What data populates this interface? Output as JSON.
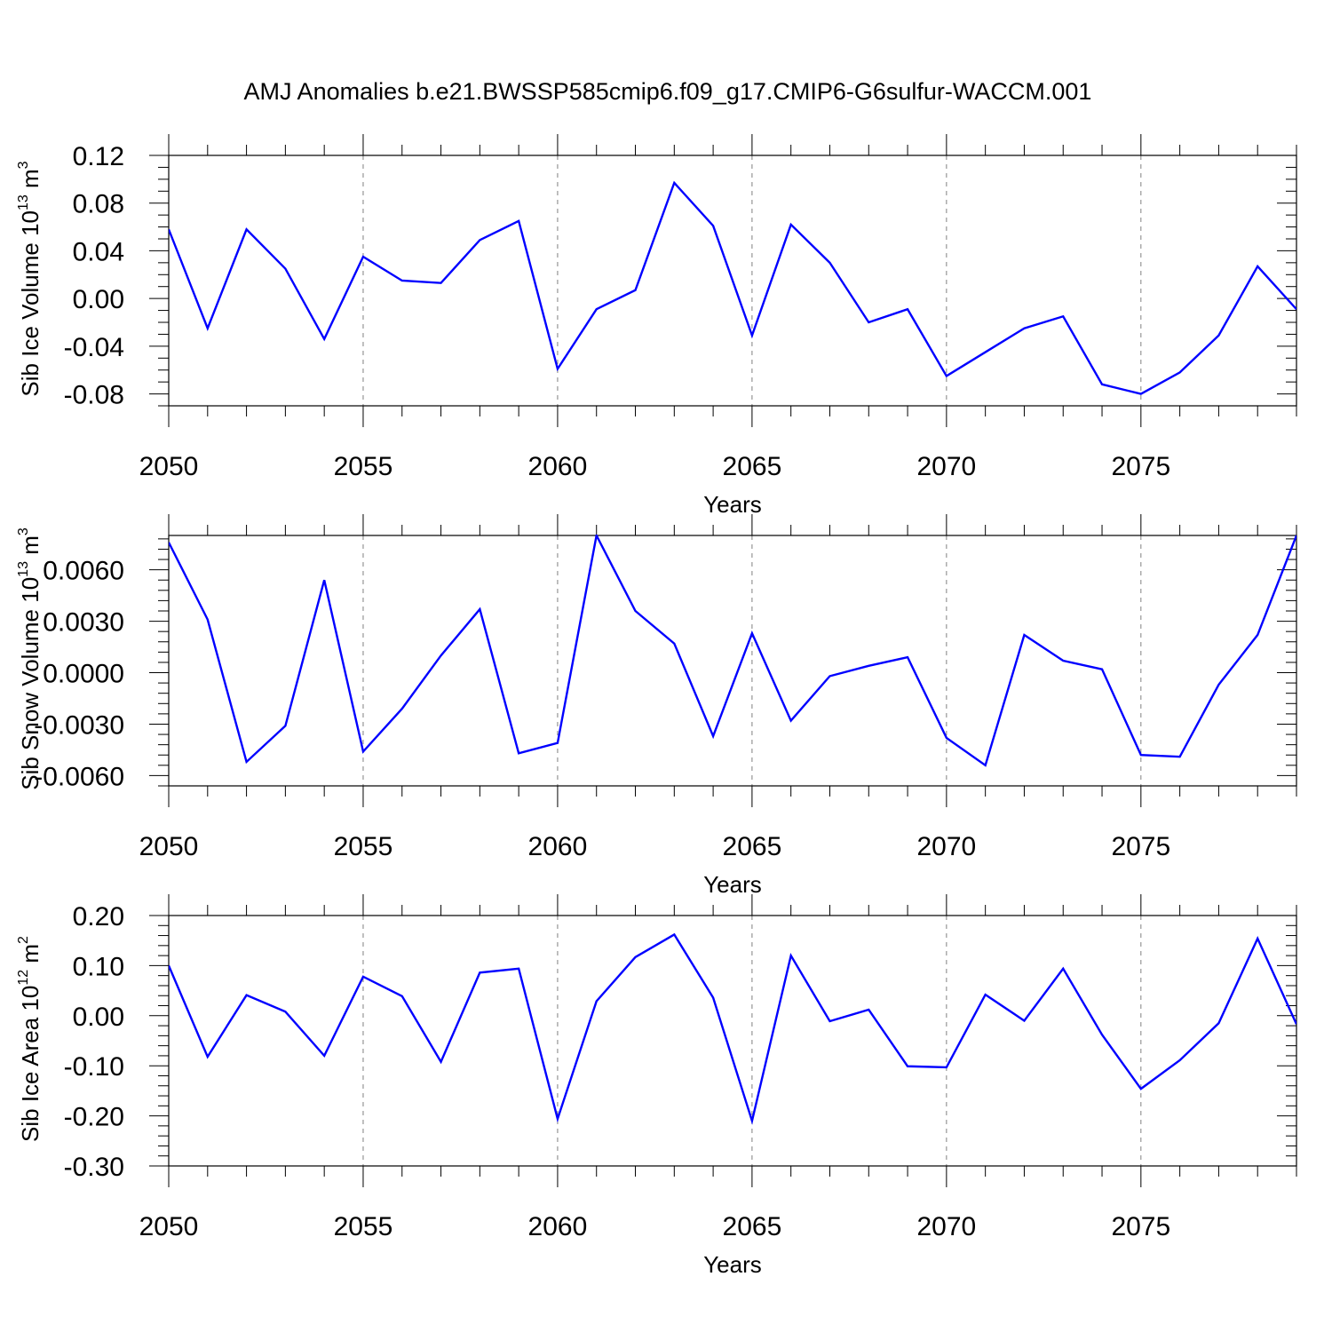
{
  "figure_title": "AMJ Anomalies b.e21.BWSSP585cmip6.f09_g17.CMIP6-G6sulfur-WACCM.001",
  "colors": {
    "series": "#0000ff",
    "axis": "#000000",
    "grid": "#808080"
  },
  "chart_data": [
    {
      "type": "line",
      "ylabel": "Sib Ice Volume 10",
      "ylabel_exp": "13",
      "ylabel_unit": " m",
      "ylabel_unit_exp": "3",
      "xlabel": "Years",
      "xlim": [
        2050,
        2079
      ],
      "ylim": [
        -0.09,
        0.12
      ],
      "xticks": [
        2050,
        2055,
        2060,
        2065,
        2070,
        2075
      ],
      "xtick_labels": [
        "2050",
        "2055",
        "2060",
        "2065",
        "2070",
        "2075"
      ],
      "yticks": [
        -0.08,
        -0.04,
        0.0,
        0.04,
        0.08,
        0.12
      ],
      "ytick_labels": [
        "-0.08",
        "-0.04",
        "0.00",
        "0.04",
        "0.08",
        "0.12"
      ],
      "yminor_step": 0.01,
      "grid": "vertical dashed at major x ticks",
      "x": [
        2050,
        2051,
        2052,
        2053,
        2054,
        2055,
        2056,
        2057,
        2058,
        2059,
        2060,
        2061,
        2062,
        2063,
        2064,
        2065,
        2066,
        2067,
        2068,
        2069,
        2070,
        2071,
        2072,
        2073,
        2074,
        2075,
        2076,
        2077,
        2078,
        2079
      ],
      "values": [
        0.058,
        -0.025,
        0.058,
        0.025,
        -0.034,
        0.035,
        0.015,
        0.013,
        0.049,
        0.065,
        -0.059,
        -0.009,
        0.007,
        0.097,
        0.061,
        -0.031,
        0.062,
        0.03,
        -0.02,
        -0.009,
        -0.065,
        -0.045,
        -0.025,
        -0.015,
        -0.072,
        -0.08,
        -0.062,
        -0.031,
        0.027,
        -0.009
      ]
    },
    {
      "type": "line",
      "ylabel": "Sib Snow Volume 10",
      "ylabel_exp": "13",
      "ylabel_unit": " m",
      "ylabel_unit_exp": "3",
      "xlabel": "Years",
      "xlim": [
        2050,
        2079
      ],
      "ylim": [
        -0.0066,
        0.008
      ],
      "xticks": [
        2050,
        2055,
        2060,
        2065,
        2070,
        2075
      ],
      "xtick_labels": [
        "2050",
        "2055",
        "2060",
        "2065",
        "2070",
        "2075"
      ],
      "yticks": [
        -0.006,
        -0.003,
        0.0,
        0.003,
        0.006
      ],
      "ytick_labels": [
        "-0.0060",
        "-0.0030",
        "0.0000",
        "0.0030",
        "0.0060"
      ],
      "yminor_step": 0.0006,
      "grid": "vertical dashed at major x ticks",
      "x": [
        2050,
        2051,
        2052,
        2053,
        2054,
        2055,
        2056,
        2057,
        2058,
        2059,
        2060,
        2061,
        2062,
        2063,
        2064,
        2065,
        2066,
        2067,
        2068,
        2069,
        2070,
        2071,
        2072,
        2073,
        2074,
        2075,
        2076,
        2077,
        2078,
        2079
      ],
      "values": [
        0.0076,
        0.0031,
        -0.0052,
        -0.0031,
        0.0054,
        -0.0046,
        -0.0021,
        0.001,
        0.0037,
        -0.0047,
        -0.0041,
        0.008,
        0.0036,
        0.0017,
        -0.0037,
        0.0023,
        -0.0028,
        -0.0002,
        0.0004,
        0.0009,
        -0.0038,
        -0.0054,
        0.0022,
        0.0007,
        0.0002,
        -0.0048,
        -0.0049,
        -0.0007,
        0.0022,
        0.008
      ]
    },
    {
      "type": "line",
      "ylabel": "Sib Ice Area 10",
      "ylabel_exp": "12",
      "ylabel_unit": " m",
      "ylabel_unit_exp": "2",
      "xlabel": "Years",
      "xlim": [
        2050,
        2079
      ],
      "ylim": [
        -0.3,
        0.2
      ],
      "xticks": [
        2050,
        2055,
        2060,
        2065,
        2070,
        2075
      ],
      "xtick_labels": [
        "2050",
        "2055",
        "2060",
        "2065",
        "2070",
        "2075"
      ],
      "yticks": [
        -0.3,
        -0.2,
        -0.1,
        0.0,
        0.1,
        0.2
      ],
      "ytick_labels": [
        "-0.30",
        "-0.20",
        "-0.10",
        "0.00",
        "0.10",
        "0.20"
      ],
      "yminor_step": 0.02,
      "grid": "vertical dashed at major x ticks",
      "x": [
        2050,
        2051,
        2052,
        2053,
        2054,
        2055,
        2056,
        2057,
        2058,
        2059,
        2060,
        2061,
        2062,
        2063,
        2064,
        2065,
        2066,
        2067,
        2068,
        2069,
        2070,
        2071,
        2072,
        2073,
        2074,
        2075,
        2076,
        2077,
        2078,
        2079
      ],
      "values": [
        0.1,
        -0.082,
        0.041,
        0.008,
        -0.08,
        0.078,
        0.039,
        -0.092,
        0.086,
        0.094,
        -0.206,
        0.029,
        0.117,
        0.162,
        0.036,
        -0.21,
        0.12,
        -0.011,
        0.012,
        -0.101,
        -0.103,
        0.042,
        -0.01,
        0.094,
        -0.038,
        -0.146,
        -0.089,
        -0.015,
        0.154,
        -0.017
      ]
    }
  ]
}
